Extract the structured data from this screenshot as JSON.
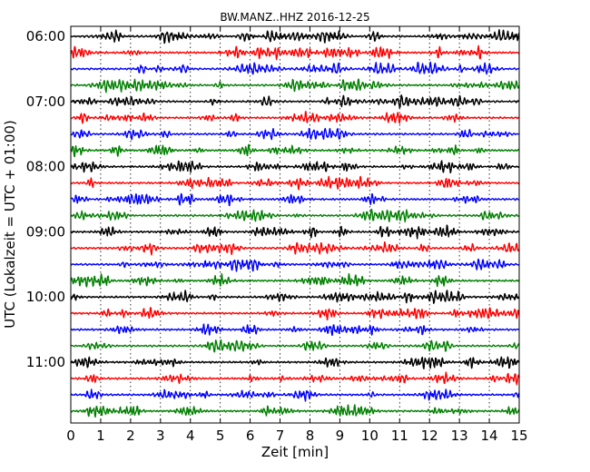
{
  "chart_data": {
    "type": "line",
    "title": "BW.MANZ..HHZ 2016-12-25",
    "xlabel": "Zeit  [min]",
    "ylabel": "UTC (Lokalzeit = UTC + 01:00)",
    "xlim": [
      0,
      15
    ],
    "x_ticks": [
      "0",
      "1",
      "2",
      "3",
      "4",
      "5",
      "6",
      "7",
      "8",
      "9",
      "10",
      "11",
      "12",
      "13",
      "14",
      "15"
    ],
    "y_tick_labels": [
      "06:00",
      "07:00",
      "08:00",
      "09:00",
      "10:00",
      "11:00"
    ],
    "trace_count": 24,
    "trace_interval_min": 15,
    "start_time": "06:00",
    "grid": true,
    "trace_colors": [
      "#000000",
      "#ff0000",
      "#0000ff",
      "#008000"
    ],
    "series": [
      {
        "start": "06:00",
        "color": "#000000"
      },
      {
        "start": "06:15",
        "color": "#ff0000"
      },
      {
        "start": "06:30",
        "color": "#0000ff"
      },
      {
        "start": "06:45",
        "color": "#008000"
      },
      {
        "start": "07:00",
        "color": "#000000"
      },
      {
        "start": "07:15",
        "color": "#ff0000"
      },
      {
        "start": "07:30",
        "color": "#0000ff"
      },
      {
        "start": "07:45",
        "color": "#008000"
      },
      {
        "start": "08:00",
        "color": "#000000"
      },
      {
        "start": "08:15",
        "color": "#ff0000"
      },
      {
        "start": "08:30",
        "color": "#0000ff"
      },
      {
        "start": "08:45",
        "color": "#008000"
      },
      {
        "start": "09:00",
        "color": "#000000"
      },
      {
        "start": "09:15",
        "color": "#ff0000"
      },
      {
        "start": "09:30",
        "color": "#0000ff"
      },
      {
        "start": "09:45",
        "color": "#008000"
      },
      {
        "start": "10:00",
        "color": "#000000"
      },
      {
        "start": "10:15",
        "color": "#ff0000"
      },
      {
        "start": "10:30",
        "color": "#0000ff"
      },
      {
        "start": "10:45",
        "color": "#008000"
      },
      {
        "start": "11:00",
        "color": "#000000"
      },
      {
        "start": "11:15",
        "color": "#ff0000"
      },
      {
        "start": "11:30",
        "color": "#0000ff"
      },
      {
        "start": "11:45",
        "color": "#008000"
      }
    ]
  }
}
